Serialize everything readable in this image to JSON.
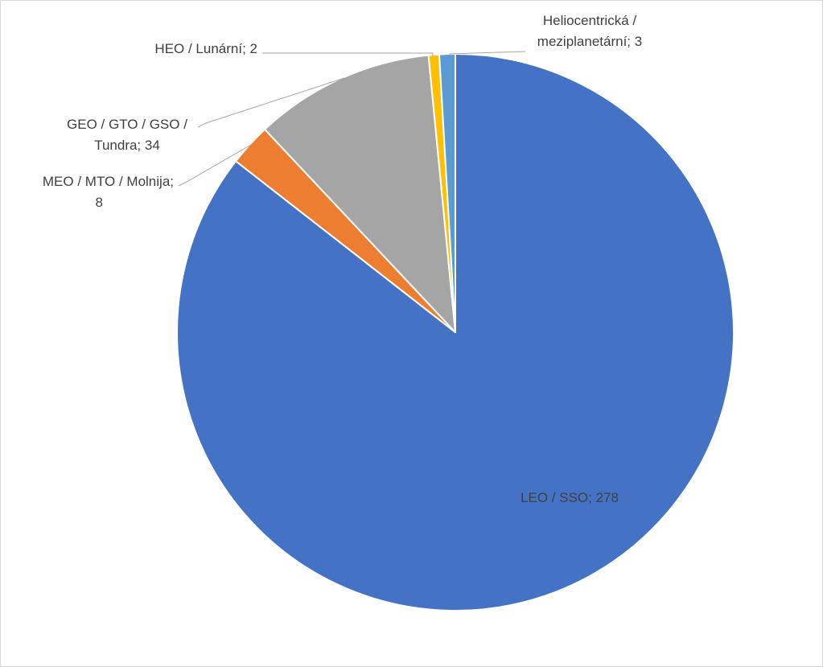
{
  "chart_data": {
    "type": "pie",
    "start_angle_deg": 0,
    "direction": "clockwise",
    "slices": [
      {
        "label": "LEO / SSO",
        "value": 278,
        "color": "#4472C4",
        "label_lines": [
          "LEO / SSO; 278"
        ]
      },
      {
        "label": "MEO / MTO / Molnija",
        "value": 8,
        "color": "#ED7D31",
        "label_lines": [
          "MEO / MTO / Molnija;",
          "8"
        ]
      },
      {
        "label": "GEO / GTO / GSO / Tundra",
        "value": 34,
        "color": "#A5A5A5",
        "label_lines": [
          "GEO / GTO / GSO /",
          "Tundra; 34"
        ]
      },
      {
        "label": "HEO / Lunární",
        "value": 2,
        "color": "#FFC000",
        "label_lines": [
          "HEO / Lunární; 2"
        ]
      },
      {
        "label": "Heliocentrická / meziplanetární",
        "value": 3,
        "color": "#5B9BD5",
        "label_lines": [
          "Heliocentrická /",
          "meziplanetární; 3"
        ]
      }
    ]
  }
}
